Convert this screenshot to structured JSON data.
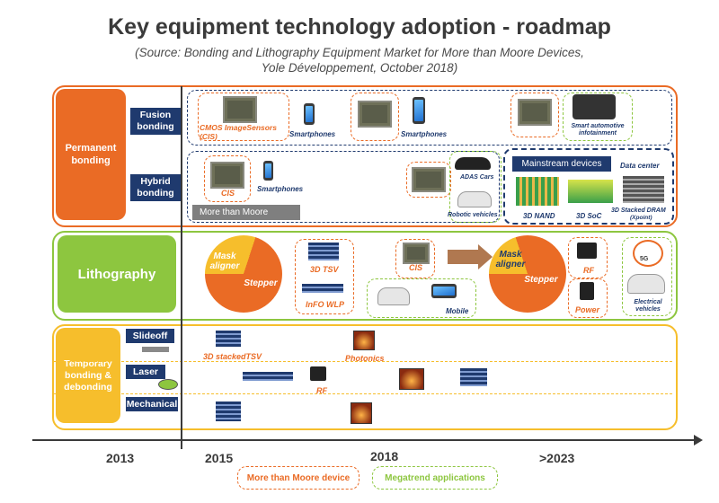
{
  "title": "Key equipment technology adoption - roadmap",
  "subtitle_line1": "(Source: Bonding and Lithography Equipment Market for More than Moore Devices,",
  "subtitle_line2": "Yole Développement, October 2018)",
  "permanent": {
    "label": "Permanent bonding",
    "fusion_label": "Fusion bonding",
    "hybrid_label": "Hybrid bonding",
    "cmos_label": "CMOS ImageSensors (CIS)",
    "smartphones_1": "Smartphones",
    "smartphones_2": "Smartphones",
    "smart_auto": "Smart automotive infotainment",
    "cis_label": "CIS",
    "smartphones_3": "Smartphones",
    "more_than_moore": "More than Moore",
    "adas": "ADAS Cars",
    "robotic": "Robotic vehicles",
    "mainstream": "Mainstream devices",
    "data_center": "Data center",
    "nand": "3D NAND",
    "soc": "3D SoC",
    "dram": "3D Stacked DRAM",
    "xpoint": "(Xpoint)"
  },
  "litho": {
    "label": "Lithography",
    "mask_aligner": "Mask aligner",
    "stepper": "Stepper",
    "tsv": "3D TSV",
    "info": "InFO WLP",
    "cis": "CIS",
    "mobile": "Mobile",
    "mask_aligner_2": "Mask aligner",
    "stepper_2": "Stepper",
    "rf": "RF",
    "power": "Power",
    "electrical": "Electrical vehicles",
    "fiveg": "5G",
    "mask_share": 0.3,
    "mask_share_2": 0.2
  },
  "temporary": {
    "label": "Temporary bonding & debonding",
    "slideoff": "Slideoff",
    "laser": "Laser",
    "mechanical": "Mechanical",
    "tsv": "3D stackedTSV",
    "photonics": "Photonics",
    "rf": "RF"
  },
  "timeline": {
    "y2013": "2013",
    "y2015": "2015",
    "y2018": "2018",
    "y2023": ">2023"
  },
  "legend": {
    "mtm": "More than Moore device",
    "mega": "Megatrend applications"
  },
  "colors": {
    "orange": "#ea6b25",
    "green": "#8dc63f",
    "yellow": "#f6be2c",
    "navy": "#1f3a6e"
  }
}
